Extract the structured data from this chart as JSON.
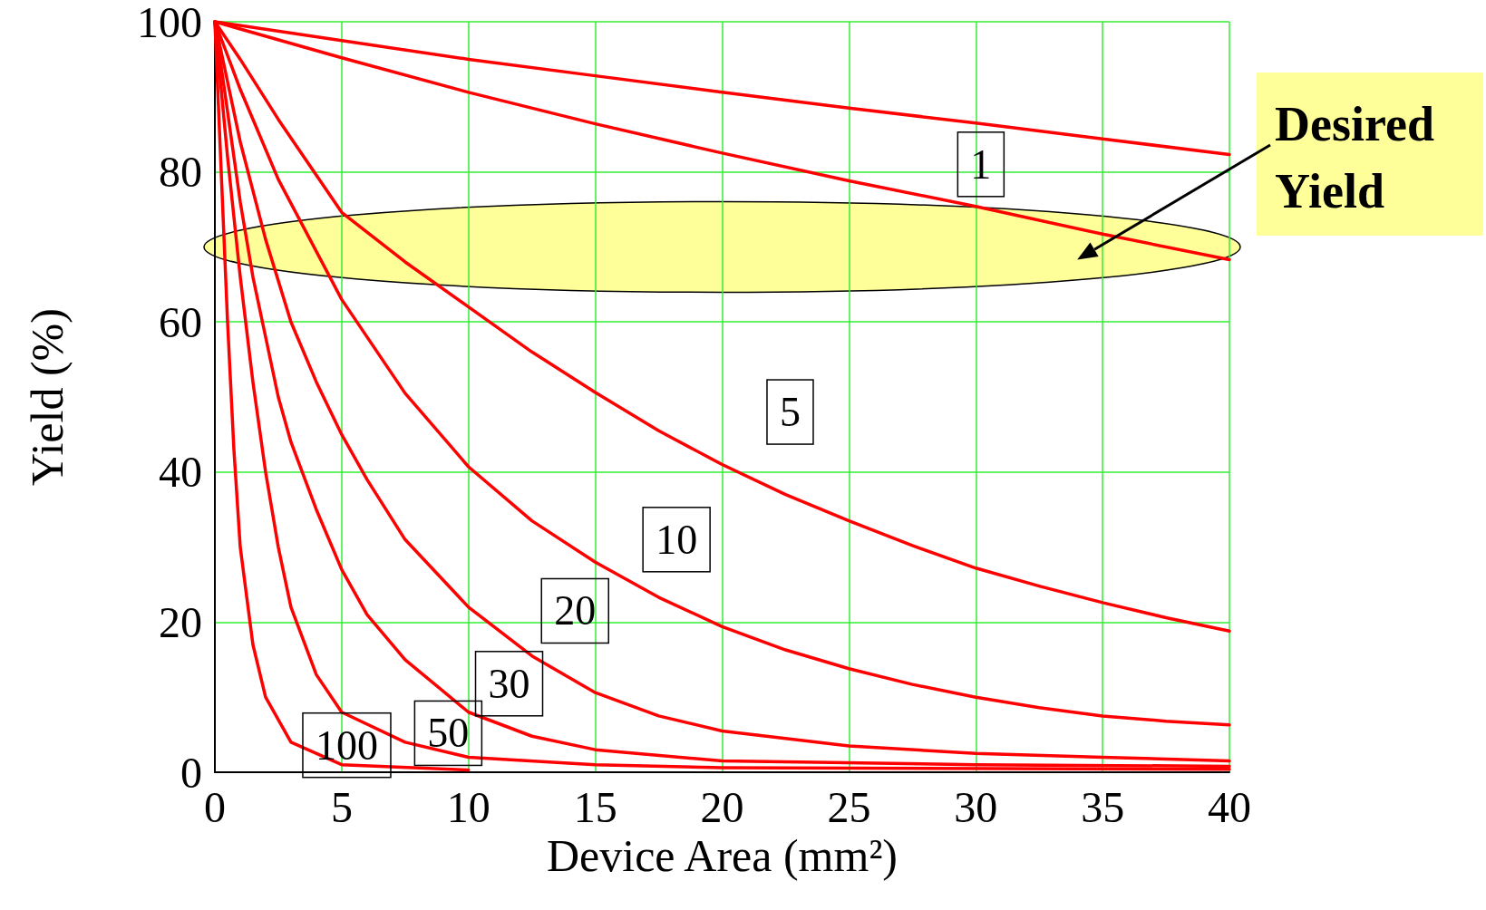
{
  "chart_data": {
    "type": "line",
    "xlabel": "Device Area (mm²)",
    "ylabel": "Yield (%)",
    "xlim": [
      0,
      40
    ],
    "ylim": [
      0,
      100
    ],
    "xticks": [
      0,
      5,
      10,
      15,
      20,
      25,
      30,
      35,
      40
    ],
    "yticks": [
      0,
      20,
      40,
      60,
      80,
      100
    ],
    "grid": true,
    "marker": "none",
    "line_style": "solid",
    "series": [
      {
        "color": "#ff0000",
        "x": [
          0,
          5,
          10,
          15,
          20,
          25,
          30,
          35,
          40
        ],
        "values": [
          100,
          97.5,
          95,
          92.8,
          90.6,
          88.5,
          86.5,
          84.4,
          82.3
        ]
      },
      {
        "name": "1",
        "color": "#ff0000",
        "x": [
          0,
          5,
          10,
          15,
          20,
          25,
          30,
          35,
          40
        ],
        "values": [
          100,
          95.2,
          90.6,
          86.4,
          82.5,
          78.8,
          75.4,
          71.7,
          68.3
        ]
      },
      {
        "name": "5",
        "color": "#ff0000",
        "x": [
          0,
          1,
          2.5,
          5,
          7.5,
          10,
          12.5,
          15,
          17.5,
          20,
          22.5,
          25,
          27.5,
          30,
          32.5,
          35,
          37.5,
          40
        ],
        "values": [
          100,
          95,
          87,
          74.6,
          68,
          62,
          56,
          50.6,
          45.5,
          41,
          37,
          33.5,
          30.2,
          27.2,
          24.8,
          22.6,
          20.6,
          18.8
        ]
      },
      {
        "name": "10",
        "color": "#ff0000",
        "x": [
          0,
          1,
          2.5,
          5,
          7.5,
          10,
          12.5,
          15,
          17.5,
          20,
          22.5,
          25,
          27.5,
          30,
          32.5,
          35,
          37.5,
          40
        ],
        "values": [
          100,
          91,
          79,
          63,
          50.5,
          40.7,
          33.5,
          28,
          23.3,
          19.4,
          16.3,
          13.8,
          11.7,
          10,
          8.6,
          7.5,
          6.8,
          6.3
        ]
      },
      {
        "name": "20",
        "color": "#ff0000",
        "x": [
          0,
          0.5,
          1,
          2,
          3,
          4,
          5,
          6,
          7.5,
          10,
          12.5,
          15,
          17.5,
          20,
          25,
          30,
          35,
          40
        ],
        "values": [
          100,
          92,
          84,
          71,
          60,
          52,
          45,
          39,
          31,
          22,
          15.5,
          10.6,
          7.5,
          5.5,
          3.5,
          2.5,
          2,
          1.5
        ]
      },
      {
        "name": "30",
        "color": "#ff0000",
        "x": [
          0,
          0.5,
          1,
          1.5,
          2,
          2.5,
          3,
          4,
          5,
          6,
          7.5,
          10,
          12.5,
          15,
          20,
          30,
          40
        ],
        "values": [
          100,
          88,
          76,
          66,
          58,
          50,
          44,
          35,
          27,
          21,
          15,
          8,
          4.8,
          3,
          1.5,
          1,
          0.8
        ]
      },
      {
        "name": "50",
        "color": "#ff0000",
        "x": [
          0,
          0.25,
          0.5,
          1,
          1.5,
          2,
          2.5,
          3,
          4,
          5,
          7.5,
          10,
          15,
          20,
          40
        ],
        "values": [
          100,
          91,
          82,
          66,
          52,
          40,
          30,
          22,
          13,
          8,
          4,
          2,
          1,
          0.6,
          0.4
        ]
      },
      {
        "name": "100",
        "color": "#ff0000",
        "x": [
          0,
          0.1,
          0.25,
          0.5,
          0.75,
          1,
          1.5,
          2,
          3,
          5,
          10
        ],
        "values": [
          100,
          92,
          80,
          60,
          43,
          30,
          17,
          10,
          4,
          1,
          0.3
        ]
      }
    ],
    "annotations": [
      "Desired Yield"
    ]
  }
}
